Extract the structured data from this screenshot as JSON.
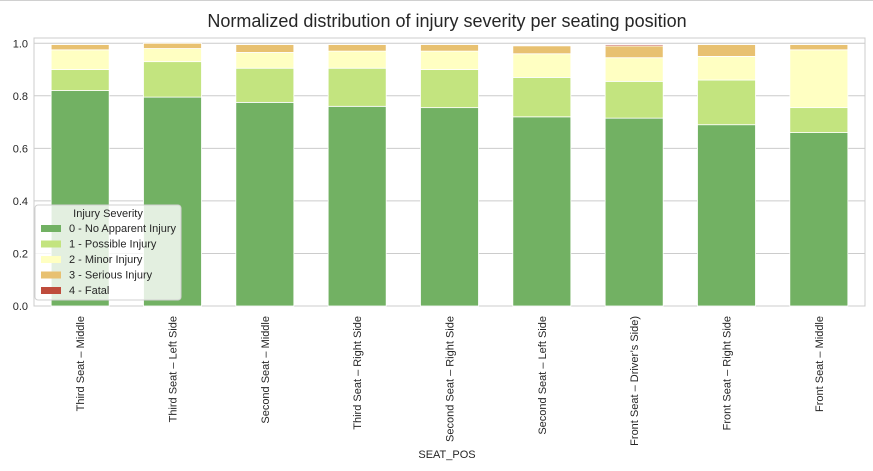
{
  "chart_data": {
    "type": "bar",
    "stacked": true,
    "title": "Normalized distribution of injury severity per seating position",
    "xlabel": "SEAT_POS",
    "ylabel": "",
    "ylim": [
      0,
      1.02
    ],
    "yticks": [
      "0.0",
      "0.2",
      "0.4",
      "0.6",
      "0.8",
      "1.0"
    ],
    "ytick_values": [
      0,
      0.2,
      0.4,
      0.6,
      0.8,
      1.0
    ],
    "grid": true,
    "legend": {
      "title": "Injury Severity",
      "placement": "bottom-left"
    },
    "categories": [
      "Third Seat – Middle",
      "Third Seat – Left Side",
      "Second Seat – Middle",
      "Third Seat – Right Side",
      "Second Seat – Right Side",
      "Second Seat – Left Side",
      "Front Seat – Driver’s Side)",
      "Front Seat – Right Side",
      "Front Seat – Middle"
    ],
    "series": [
      {
        "name": "0 - No Apparent Injury",
        "color": "#72b163",
        "values": [
          0.82,
          0.795,
          0.775,
          0.76,
          0.755,
          0.72,
          0.715,
          0.69,
          0.66
        ]
      },
      {
        "name": "1 - Possible Injury",
        "color": "#c3e47f",
        "values": [
          0.08,
          0.135,
          0.13,
          0.145,
          0.145,
          0.15,
          0.14,
          0.17,
          0.095
        ]
      },
      {
        "name": "2 - Minor Injury",
        "color": "#ffffc2",
        "values": [
          0.075,
          0.05,
          0.06,
          0.065,
          0.07,
          0.09,
          0.09,
          0.09,
          0.22
        ]
      },
      {
        "name": "3 - Serious Injury",
        "color": "#e8c171",
        "values": [
          0.02,
          0.02,
          0.03,
          0.025,
          0.025,
          0.03,
          0.045,
          0.045,
          0.02
        ]
      },
      {
        "name": "4 - Fatal",
        "color": "#bf4c3c",
        "values": [
          0.0,
          0.0,
          0.0,
          0.0,
          0.0,
          0.0,
          0.005,
          0.0,
          0.0
        ]
      }
    ]
  }
}
